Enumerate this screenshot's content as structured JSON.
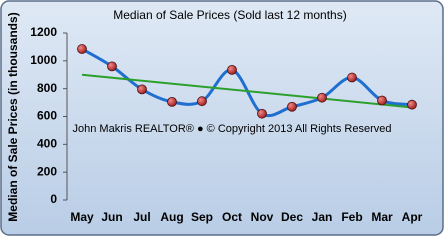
{
  "chart_data": {
    "type": "line",
    "title": "Median of Sale Prices (Sold last 12 months)",
    "y_label": "Median of Sale Prices (in thousands)",
    "annotation": "John Makris REALTOR®  ●  © Copyright 2013 All Rights Reserved",
    "categories": [
      "May",
      "Jun",
      "Jul",
      "Aug",
      "Sep",
      "Oct",
      "Nov",
      "Dec",
      "Jan",
      "Feb",
      "Mar",
      "Apr"
    ],
    "series": [
      {
        "color": "#1f6fd0",
        "values": [
          1085,
          960,
          795,
          705,
          710,
          935,
          620,
          670,
          735,
          880,
          715,
          685
        ]
      }
    ],
    "trend": {
      "color": "#2ca02c",
      "values": [
        900,
        665
      ]
    },
    "ylim": [
      0,
      1200
    ],
    "yticks": [
      0,
      200,
      400,
      600,
      800,
      1000,
      1200
    ]
  }
}
